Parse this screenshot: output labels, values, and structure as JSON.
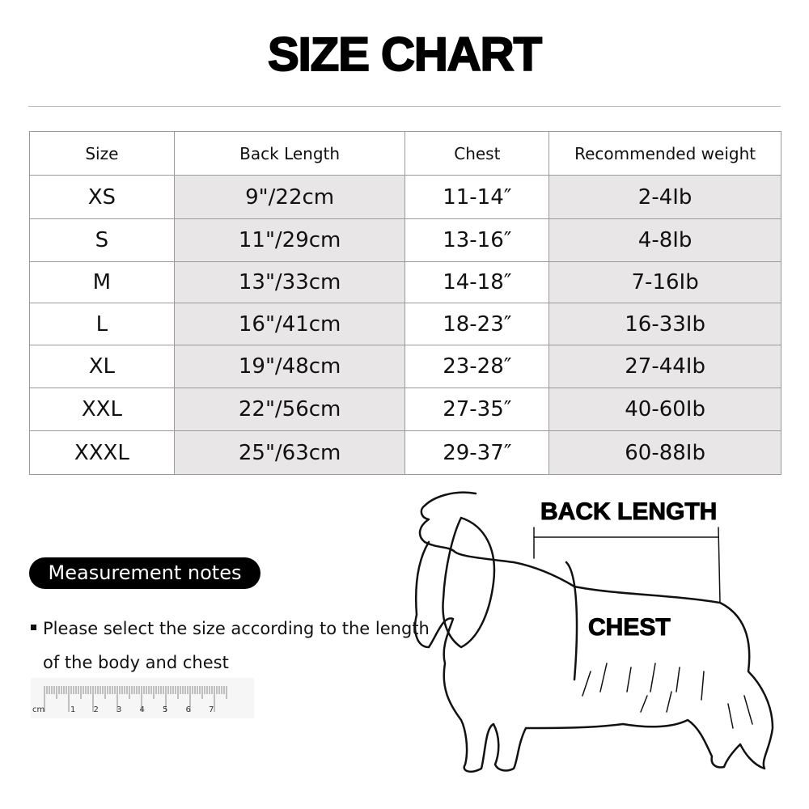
{
  "title": "SIZE CHART",
  "table": {
    "headers": [
      "Size",
      "Back Length",
      "Chest",
      "Recommended weight"
    ],
    "rows": [
      [
        "XS",
        "9\"/22cm",
        "11-14″",
        "2-4Ib"
      ],
      [
        "S",
        "11\"/29cm",
        "13-16″",
        "4-8Ib"
      ],
      [
        "M",
        "13\"/33cm",
        "14-18″",
        "7-16Ib"
      ],
      [
        "L",
        "16\"/41cm",
        "18-23″",
        "16-33Ib"
      ],
      [
        "XL",
        "19\"/48cm",
        "23-28″",
        "27-44Ib"
      ],
      [
        "XXL",
        "22\"/56cm",
        "27-35″",
        "40-60Ib"
      ],
      [
        "XXXL",
        "25\"/63cm",
        "29-37″",
        "60-88Ib"
      ]
    ]
  },
  "notes": {
    "label": "Measurement notes",
    "line1": "Please select the size according to the length",
    "line2": "of the body and chest"
  },
  "ruler": {
    "unit": "cm",
    "numbers": [
      "1",
      "2",
      "3",
      "4",
      "5",
      "6",
      "7"
    ]
  },
  "diagram": {
    "back_length_label": "BACK LENGTH",
    "chest_label": "CHEST"
  },
  "colors": {
    "shaded_cell": "#e8e6e6",
    "pill": "#000000"
  }
}
